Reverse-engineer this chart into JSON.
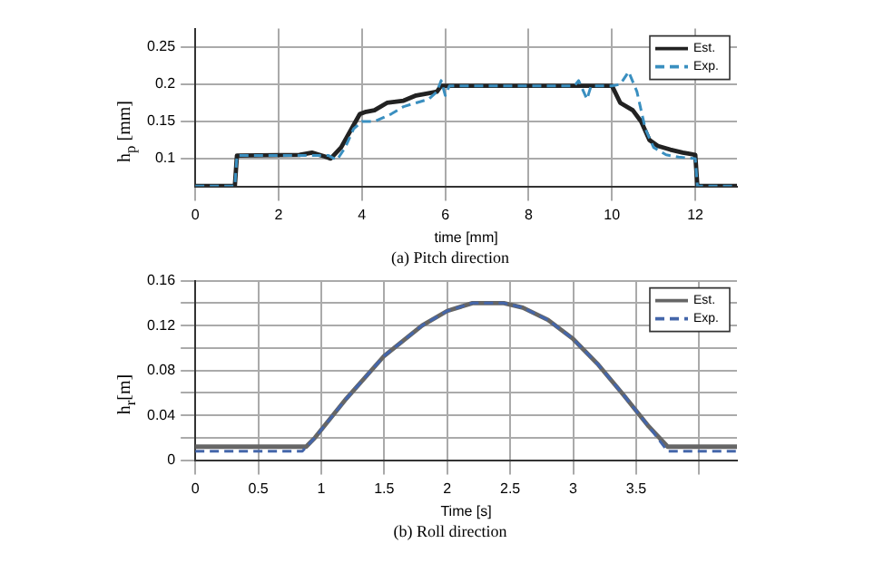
{
  "chart_data": [
    {
      "type": "line",
      "xlabel": "time [mm]",
      "ylabel": "h$_{p}$ [mm]",
      "annotations": [
        "(a) Pitch direction"
      ],
      "xlim": [
        0,
        13
      ],
      "xticks": [
        0,
        2,
        4,
        6,
        8,
        10,
        12
      ],
      "ylim": [
        0.0625,
        0.275
      ],
      "yticks": [
        0.1,
        0.15,
        0.2,
        0.25
      ],
      "grid": true,
      "legend": "top right",
      "series": [
        {
          "name": "Est.",
          "color": "#222222",
          "line_style": "solid",
          "x": [
            0,
            0.95,
            1.0,
            2.5,
            2.8,
            3.1,
            3.25,
            3.5,
            3.8,
            3.95,
            4.1,
            4.3,
            4.6,
            5.0,
            5.3,
            5.6,
            5.8,
            5.9,
            10.0,
            10.2,
            10.5,
            10.7,
            10.9,
            11.1,
            11.4,
            11.7,
            12.0,
            12.05,
            13
          ],
          "values": [
            0.063,
            0.063,
            0.104,
            0.105,
            0.108,
            0.103,
            0.1,
            0.115,
            0.145,
            0.16,
            0.163,
            0.165,
            0.175,
            0.178,
            0.185,
            0.188,
            0.19,
            0.198,
            0.198,
            0.175,
            0.165,
            0.15,
            0.125,
            0.117,
            0.112,
            0.108,
            0.105,
            0.063,
            0.063
          ]
        },
        {
          "name": "Exp.",
          "color": "#3a8fc0",
          "line_style": "dashed",
          "x": [
            0,
            0.95,
            1.0,
            3.2,
            3.4,
            3.6,
            3.8,
            4.0,
            4.3,
            4.7,
            5.0,
            5.3,
            5.6,
            5.8,
            5.9,
            6.0,
            6.1,
            9.1,
            9.2,
            9.4,
            9.5,
            10.0,
            10.2,
            10.4,
            10.6,
            10.8,
            11.0,
            11.3,
            11.6,
            12.0,
            12.05,
            13
          ],
          "values": [
            0.063,
            0.063,
            0.104,
            0.104,
            0.098,
            0.115,
            0.14,
            0.15,
            0.15,
            0.16,
            0.17,
            0.175,
            0.18,
            0.19,
            0.205,
            0.185,
            0.198,
            0.198,
            0.205,
            0.18,
            0.198,
            0.198,
            0.2,
            0.217,
            0.19,
            0.14,
            0.115,
            0.105,
            0.102,
            0.1,
            0.063,
            0.063
          ]
        }
      ]
    },
    {
      "type": "line",
      "xlabel": "Time [s]",
      "ylabel": "h$_{r}$[m]",
      "annotations": [
        "(b) Roll direction"
      ],
      "xlim": [
        0,
        4.3
      ],
      "xticks": [
        0,
        0.5,
        1,
        1.5,
        2,
        2.5,
        3,
        3.5,
        {
          "value": 4,
          "label": null
        }
      ],
      "ylim": [
        0,
        0.16
      ],
      "yticks": [
        0,
        {
          "value": 0.02,
          "label": null
        },
        0.04,
        {
          "value": 0.06,
          "label": null
        },
        0.08,
        {
          "value": 0.1,
          "label": null
        },
        0.12,
        {
          "value": 0.14,
          "label": null
        },
        0.16
      ],
      "grid": true,
      "legend": "top right",
      "series": [
        {
          "name": "Est.",
          "color": "#666666",
          "line_style": "solid",
          "x": [
            0,
            0.88,
            0.95,
            1.2,
            1.5,
            1.8,
            2.0,
            2.2,
            2.45,
            2.6,
            2.8,
            3.0,
            3.2,
            3.4,
            3.6,
            3.75,
            4.3
          ],
          "values": [
            0.012,
            0.012,
            0.02,
            0.055,
            0.093,
            0.12,
            0.133,
            0.14,
            0.14,
            0.136,
            0.125,
            0.108,
            0.085,
            0.058,
            0.03,
            0.012,
            0.012
          ]
        },
        {
          "name": "Exp.",
          "color": "#4466aa",
          "line_style": "dashed",
          "x": [
            0,
            0.85,
            0.95,
            1.2,
            1.5,
            1.8,
            2.0,
            2.2,
            2.45,
            2.6,
            2.8,
            3.0,
            3.2,
            3.4,
            3.6,
            3.75,
            4.3
          ],
          "values": [
            0.008,
            0.008,
            0.02,
            0.055,
            0.093,
            0.12,
            0.133,
            0.14,
            0.14,
            0.136,
            0.125,
            0.108,
            0.085,
            0.058,
            0.03,
            0.008,
            0.008
          ]
        }
      ]
    }
  ]
}
